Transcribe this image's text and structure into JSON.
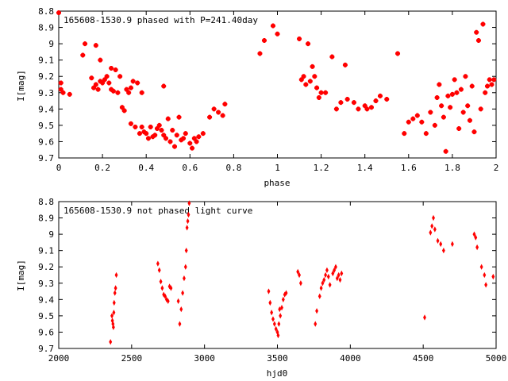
{
  "chart_data": [
    {
      "type": "scatter",
      "title": "165608-1530.9 phased with P=241.40day",
      "xlabel": "phase",
      "ylabel": "I[mag]",
      "xlim": [
        0,
        2
      ],
      "ylim": [
        8.8,
        9.7
      ],
      "y_inverted": true,
      "grid": false,
      "x_ticks": [
        "0",
        "0.2",
        "0.4",
        "0.6",
        "0.8",
        "1",
        "1.2",
        "1.4",
        "1.6",
        "1.8",
        "2"
      ],
      "y_ticks": [
        "8.8",
        "8.9",
        "9",
        "9.1",
        "9.2",
        "9.3",
        "9.4",
        "9.5",
        "9.6",
        "9.7"
      ],
      "marker_color": "#ff0000",
      "points": [
        [
          0.0,
          8.81
        ],
        [
          0.01,
          9.24
        ],
        [
          0.01,
          9.28
        ],
        [
          0.02,
          9.3
        ],
        [
          0.05,
          9.31
        ],
        [
          0.11,
          9.07
        ],
        [
          0.12,
          9.0
        ],
        [
          0.15,
          9.21
        ],
        [
          0.16,
          9.27
        ],
        [
          0.17,
          9.01
        ],
        [
          0.17,
          9.25
        ],
        [
          0.18,
          9.28
        ],
        [
          0.19,
          9.23
        ],
        [
          0.19,
          9.1
        ],
        [
          0.2,
          9.24
        ],
        [
          0.21,
          9.22
        ],
        [
          0.22,
          9.2
        ],
        [
          0.23,
          9.24
        ],
        [
          0.24,
          9.15
        ],
        [
          0.24,
          9.28
        ],
        [
          0.25,
          9.29
        ],
        [
          0.26,
          9.16
        ],
        [
          0.27,
          9.3
        ],
        [
          0.28,
          9.2
        ],
        [
          0.29,
          9.39
        ],
        [
          0.3,
          9.41
        ],
        [
          0.31,
          9.28
        ],
        [
          0.32,
          9.3
        ],
        [
          0.33,
          9.27
        ],
        [
          0.33,
          9.49
        ],
        [
          0.34,
          9.23
        ],
        [
          0.35,
          9.51
        ],
        [
          0.36,
          9.24
        ],
        [
          0.37,
          9.55
        ],
        [
          0.38,
          9.3
        ],
        [
          0.38,
          9.51
        ],
        [
          0.39,
          9.54
        ],
        [
          0.4,
          9.55
        ],
        [
          0.41,
          9.58
        ],
        [
          0.42,
          9.51
        ],
        [
          0.43,
          9.57
        ],
        [
          0.44,
          9.56
        ],
        [
          0.45,
          9.52
        ],
        [
          0.46,
          9.5
        ],
        [
          0.47,
          9.53
        ],
        [
          0.48,
          9.26
        ],
        [
          0.48,
          9.56
        ],
        [
          0.49,
          9.58
        ],
        [
          0.5,
          9.46
        ],
        [
          0.51,
          9.6
        ],
        [
          0.52,
          9.53
        ],
        [
          0.53,
          9.63
        ],
        [
          0.54,
          9.56
        ],
        [
          0.55,
          9.45
        ],
        [
          0.56,
          9.59
        ],
        [
          0.57,
          9.58
        ],
        [
          0.58,
          9.55
        ],
        [
          0.6,
          9.61
        ],
        [
          0.61,
          9.64
        ],
        [
          0.62,
          9.58
        ],
        [
          0.63,
          9.6
        ],
        [
          0.64,
          9.57
        ],
        [
          0.66,
          9.55
        ],
        [
          0.69,
          9.45
        ],
        [
          0.71,
          9.4
        ],
        [
          0.73,
          9.42
        ],
        [
          0.75,
          9.44
        ],
        [
          0.76,
          9.37
        ],
        [
          0.92,
          9.06
        ],
        [
          0.94,
          8.98
        ],
        [
          0.98,
          8.89
        ],
        [
          1.0,
          8.94
        ],
        [
          1.1,
          8.97
        ],
        [
          1.11,
          9.22
        ],
        [
          1.12,
          9.2
        ],
        [
          1.13,
          9.25
        ],
        [
          1.14,
          9.0
        ],
        [
          1.15,
          9.23
        ],
        [
          1.16,
          9.14
        ],
        [
          1.17,
          9.2
        ],
        [
          1.18,
          9.27
        ],
        [
          1.19,
          9.33
        ],
        [
          1.2,
          9.3
        ],
        [
          1.22,
          9.3
        ],
        [
          1.25,
          9.08
        ],
        [
          1.27,
          9.4
        ],
        [
          1.29,
          9.36
        ],
        [
          1.31,
          9.13
        ],
        [
          1.32,
          9.34
        ],
        [
          1.35,
          9.36
        ],
        [
          1.37,
          9.4
        ],
        [
          1.4,
          9.38
        ],
        [
          1.41,
          9.4
        ],
        [
          1.43,
          9.39
        ],
        [
          1.45,
          9.35
        ],
        [
          1.47,
          9.32
        ],
        [
          1.5,
          9.34
        ],
        [
          1.55,
          9.06
        ],
        [
          1.58,
          9.55
        ],
        [
          1.6,
          9.48
        ],
        [
          1.62,
          9.46
        ],
        [
          1.64,
          9.44
        ],
        [
          1.66,
          9.48
        ],
        [
          1.68,
          9.55
        ],
        [
          1.7,
          9.42
        ],
        [
          1.72,
          9.5
        ],
        [
          1.73,
          9.33
        ],
        [
          1.74,
          9.25
        ],
        [
          1.75,
          9.38
        ],
        [
          1.76,
          9.45
        ],
        [
          1.77,
          9.66
        ],
        [
          1.78,
          9.32
        ],
        [
          1.79,
          9.39
        ],
        [
          1.8,
          9.31
        ],
        [
          1.81,
          9.22
        ],
        [
          1.82,
          9.3
        ],
        [
          1.83,
          9.52
        ],
        [
          1.84,
          9.28
        ],
        [
          1.85,
          9.42
        ],
        [
          1.86,
          9.2
        ],
        [
          1.87,
          9.38
        ],
        [
          1.88,
          9.47
        ],
        [
          1.89,
          9.26
        ],
        [
          1.9,
          9.54
        ],
        [
          1.91,
          8.93
        ],
        [
          1.92,
          8.98
        ],
        [
          1.93,
          9.4
        ],
        [
          1.94,
          8.88
        ],
        [
          1.95,
          9.3
        ],
        [
          1.96,
          9.26
        ],
        [
          1.97,
          9.22
        ],
        [
          1.98,
          9.25
        ],
        [
          1.99,
          9.22
        ]
      ]
    },
    {
      "type": "scatter",
      "title": "165608-1530.9 not phased light curve",
      "xlabel": "hjd0",
      "ylabel": "I[mag]",
      "xlim": [
        2000,
        5000
      ],
      "ylim": [
        8.8,
        9.7
      ],
      "y_inverted": true,
      "grid": false,
      "x_ticks": [
        "2000",
        "2500",
        "3000",
        "3500",
        "4000",
        "4500",
        "5000"
      ],
      "y_ticks": [
        "8.8",
        "8.9",
        "9",
        "9.1",
        "9.2",
        "9.3",
        "9.4",
        "9.5",
        "9.6",
        "9.7"
      ],
      "marker_color": "#ff0000",
      "points": [
        [
          2355,
          9.66
        ],
        [
          2365,
          9.5
        ],
        [
          2368,
          9.53
        ],
        [
          2372,
          9.55
        ],
        [
          2375,
          9.57
        ],
        [
          2378,
          9.48
        ],
        [
          2380,
          9.42
        ],
        [
          2385,
          9.36
        ],
        [
          2390,
          9.33
        ],
        [
          2395,
          9.25
        ],
        [
          2680,
          9.18
        ],
        [
          2690,
          9.22
        ],
        [
          2700,
          9.29
        ],
        [
          2710,
          9.33
        ],
        [
          2720,
          9.37
        ],
        [
          2730,
          9.38
        ],
        [
          2740,
          9.4
        ],
        [
          2750,
          9.41
        ],
        [
          2760,
          9.32
        ],
        [
          2770,
          9.33
        ],
        [
          2820,
          9.41
        ],
        [
          2830,
          9.55
        ],
        [
          2840,
          9.46
        ],
        [
          2850,
          9.36
        ],
        [
          2860,
          9.27
        ],
        [
          2870,
          9.2
        ],
        [
          2875,
          9.1
        ],
        [
          2880,
          8.96
        ],
        [
          2885,
          8.92
        ],
        [
          2890,
          8.88
        ],
        [
          2895,
          8.81
        ],
        [
          3440,
          9.35
        ],
        [
          3450,
          9.42
        ],
        [
          3460,
          9.48
        ],
        [
          3470,
          9.52
        ],
        [
          3480,
          9.55
        ],
        [
          3490,
          9.58
        ],
        [
          3500,
          9.6
        ],
        [
          3505,
          9.62
        ],
        [
          3510,
          9.55
        ],
        [
          3515,
          9.46
        ],
        [
          3520,
          9.5
        ],
        [
          3530,
          9.45
        ],
        [
          3540,
          9.4
        ],
        [
          3550,
          9.37
        ],
        [
          3560,
          9.36
        ],
        [
          3640,
          9.23
        ],
        [
          3650,
          9.25
        ],
        [
          3660,
          9.3
        ],
        [
          3760,
          9.55
        ],
        [
          3770,
          9.47
        ],
        [
          3790,
          9.38
        ],
        [
          3800,
          9.33
        ],
        [
          3810,
          9.3
        ],
        [
          3820,
          9.28
        ],
        [
          3830,
          9.25
        ],
        [
          3840,
          9.22
        ],
        [
          3850,
          9.26
        ],
        [
          3860,
          9.31
        ],
        [
          3880,
          9.24
        ],
        [
          3890,
          9.22
        ],
        [
          3900,
          9.2
        ],
        [
          3910,
          9.27
        ],
        [
          3920,
          9.25
        ],
        [
          3930,
          9.28
        ],
        [
          3940,
          9.24
        ],
        [
          4510,
          9.51
        ],
        [
          4550,
          8.99
        ],
        [
          4560,
          8.95
        ],
        [
          4570,
          8.9
        ],
        [
          4580,
          8.97
        ],
        [
          4600,
          9.04
        ],
        [
          4620,
          9.06
        ],
        [
          4640,
          9.1
        ],
        [
          4700,
          9.06
        ],
        [
          4850,
          9.0
        ],
        [
          4860,
          9.02
        ],
        [
          4870,
          9.08
        ],
        [
          4900,
          9.2
        ],
        [
          4920,
          9.25
        ],
        [
          4930,
          9.31
        ],
        [
          4980,
          9.26
        ]
      ]
    }
  ]
}
